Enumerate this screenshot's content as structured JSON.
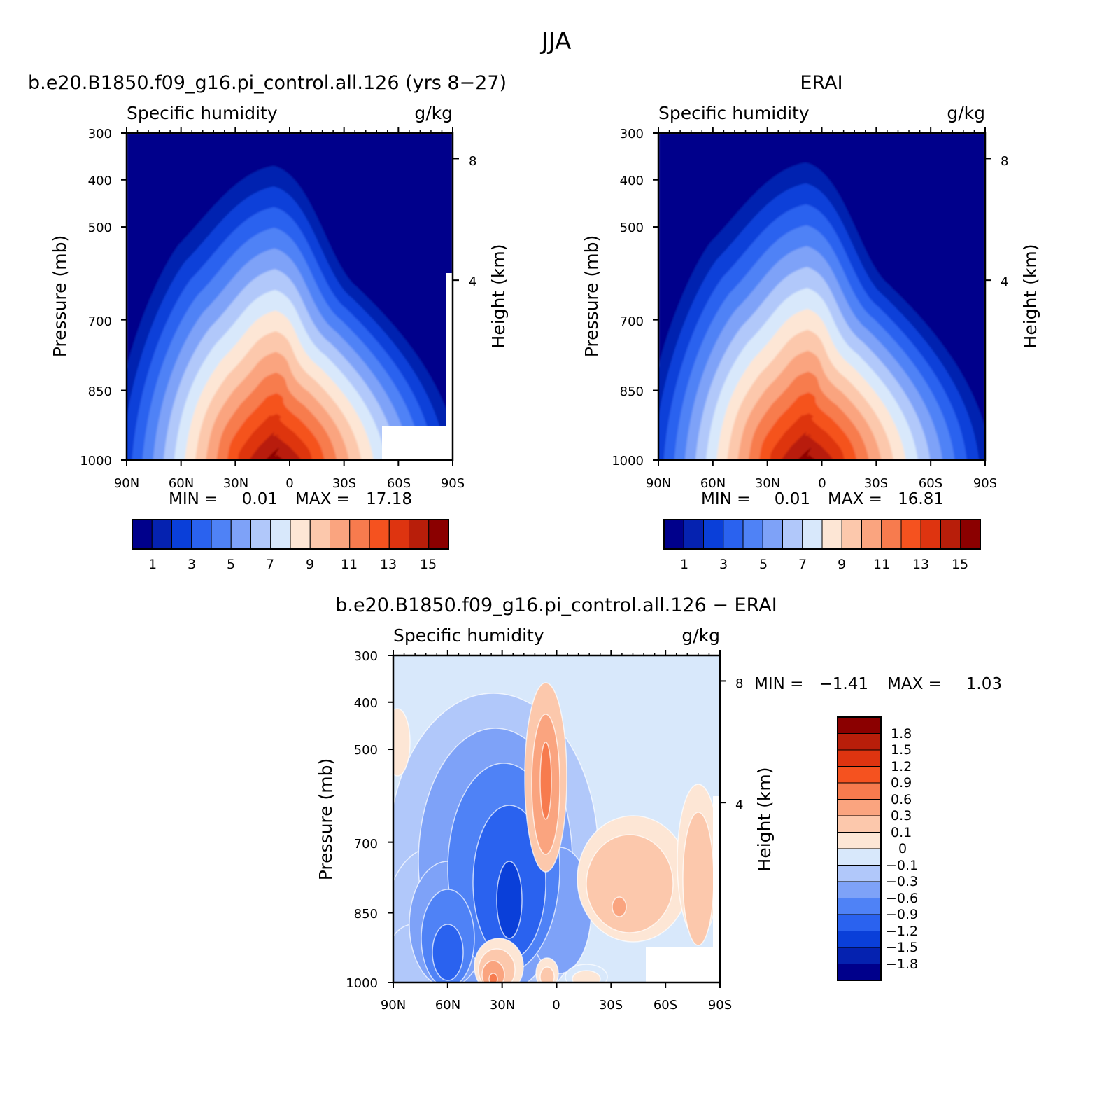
{
  "figure": {
    "title": "JJA"
  },
  "panels": [
    {
      "id": "model",
      "title": "b.e20.B1850.f09_g16.pi_control.all.126 (yrs 8-27)",
      "left_label": "Specific humidity",
      "right_label": "g/kg",
      "ylabel": "Pressure (mb)",
      "y2label": "Height (km)",
      "xticks": [
        "90N",
        "60N",
        "30N",
        "0",
        "30S",
        "60S",
        "90S"
      ],
      "yticks": [
        "300",
        "400",
        "500",
        "700",
        "850",
        "1000"
      ],
      "y2ticks": [
        "8",
        "4"
      ],
      "stats_min_label": "MIN =",
      "stats_min": "0.01",
      "stats_max_label": "MAX =",
      "stats_max": "17.18"
    },
    {
      "id": "obs",
      "title": "ERAI",
      "left_label": "Specific humidity",
      "right_label": "g/kg",
      "ylabel": "Pressure (mb)",
      "y2label": "Height (km)",
      "xticks": [
        "90N",
        "60N",
        "30N",
        "0",
        "30S",
        "60S",
        "90S"
      ],
      "yticks": [
        "300",
        "400",
        "500",
        "700",
        "850",
        "1000"
      ],
      "y2ticks": [
        "8",
        "4"
      ],
      "stats_min_label": "MIN =",
      "stats_min": "0.01",
      "stats_max_label": "MAX =",
      "stats_max": "16.81"
    },
    {
      "id": "diff",
      "title": "b.e20.B1850.f09_g16.pi_control.all.126 - ERAI",
      "left_label": "Specific humidity",
      "right_label": "g/kg",
      "ylabel": "Pressure (mb)",
      "y2label": "Height (km)",
      "xticks": [
        "90N",
        "60N",
        "30N",
        "0",
        "30S",
        "60S",
        "90S"
      ],
      "yticks": [
        "300",
        "400",
        "500",
        "700",
        "850",
        "1000"
      ],
      "y2ticks": [
        "8",
        "4"
      ],
      "stats_min_label": "MIN =",
      "stats_min": "-1.41",
      "stats_max_label": "MAX =",
      "stats_max": "1.03"
    }
  ],
  "colorbars": {
    "abs": {
      "labels": [
        "1",
        "3",
        "5",
        "7",
        "9",
        "11",
        "13",
        "15"
      ],
      "levels": [
        1,
        2,
        3,
        4,
        5,
        6,
        7,
        8,
        9,
        10,
        11,
        12,
        13,
        14,
        15
      ],
      "colors": [
        "#00008b",
        "#0522b0",
        "#0a3fd9",
        "#2a62ef",
        "#4f82f6",
        "#7ea2f8",
        "#b1c8fa",
        "#d8e8fb",
        "#fde6d5",
        "#fcc8ac",
        "#faa47f",
        "#f77b4e",
        "#f5521f",
        "#de3410",
        "#b81e0a",
        "#8b0000"
      ]
    },
    "diff": {
      "labels": [
        "1.8",
        "1.5",
        "1.2",
        "0.9",
        "0.6",
        "0.3",
        "0.1",
        "0",
        "-0.1",
        "-0.3",
        "-0.6",
        "-0.9",
        "-1.2",
        "-1.5",
        "-1.8"
      ],
      "colors_top_down": [
        "#8b0000",
        "#b81e0a",
        "#de3410",
        "#f5521f",
        "#f77b4e",
        "#faa47f",
        "#fcc8ac",
        "#fde6d5",
        "#d8e8fb",
        "#b1c8fa",
        "#7ea2f8",
        "#4f82f6",
        "#2a62ef",
        "#0a3fd9",
        "#0522b0",
        "#00008b"
      ]
    }
  },
  "chart_data": [
    {
      "type": "heatmap",
      "title": "b.e20.B1850.f09_g16.pi_control.all.126 (yrs 8-27)",
      "variable": "Specific humidity",
      "units": "g/kg",
      "xlabel": "",
      "ylabel": "Pressure (mb)",
      "y2label": "Height (km)",
      "x": [
        90,
        75,
        60,
        45,
        30,
        15,
        0,
        -15,
        -30,
        -45,
        -60,
        -75,
        -90
      ],
      "x_tick_labels": [
        "90N",
        "60N",
        "30N",
        "0",
        "30S",
        "60S",
        "90S"
      ],
      "y": [
        1000,
        850,
        700,
        500,
        400,
        300
      ],
      "ylim": [
        1000,
        300
      ],
      "y_scale": "log",
      "contour_levels": [
        1,
        2,
        3,
        4,
        5,
        6,
        7,
        8,
        9,
        10,
        11,
        12,
        13,
        14,
        15
      ],
      "z": [
        [
          1.5,
          3.5,
          6.0,
          8.5,
          12.5,
          16.5,
          17.0,
          11.5,
          7.0,
          3.0,
          null,
          null,
          null
        ],
        [
          1.2,
          2.8,
          4.5,
          6.0,
          8.5,
          11.0,
          10.5,
          7.5,
          5.5,
          3.0,
          1.2,
          0.5,
          null
        ],
        [
          0.8,
          1.6,
          2.6,
          3.6,
          5.0,
          6.5,
          6.8,
          5.0,
          3.4,
          2.0,
          1.0,
          0.4,
          0.2
        ],
        [
          0.3,
          0.5,
          0.8,
          1.2,
          2.0,
          2.8,
          3.0,
          2.2,
          1.3,
          0.6,
          0.3,
          0.15,
          0.1
        ],
        [
          0.1,
          0.2,
          0.3,
          0.5,
          0.9,
          1.2,
          1.3,
          0.9,
          0.5,
          0.25,
          0.1,
          0.05,
          0.05
        ],
        [
          0.03,
          0.05,
          0.08,
          0.15,
          0.25,
          0.35,
          0.4,
          0.3,
          0.15,
          0.08,
          0.04,
          0.02,
          0.01
        ]
      ],
      "min": 0.01,
      "max": 17.18
    },
    {
      "type": "heatmap",
      "title": "ERAI",
      "variable": "Specific humidity",
      "units": "g/kg",
      "xlabel": "",
      "ylabel": "Pressure (mb)",
      "y2label": "Height (km)",
      "x": [
        90,
        75,
        60,
        45,
        30,
        15,
        0,
        -15,
        -30,
        -45,
        -60,
        -75,
        -90
      ],
      "x_tick_labels": [
        "90N",
        "60N",
        "30N",
        "0",
        "30S",
        "60S",
        "90S"
      ],
      "y": [
        1000,
        850,
        700,
        500,
        400,
        300
      ],
      "ylim": [
        1000,
        300
      ],
      "y_scale": "log",
      "contour_levels": [
        1,
        2,
        3,
        4,
        5,
        6,
        7,
        8,
        9,
        10,
        11,
        12,
        13,
        14,
        15
      ],
      "z": [
        [
          2.0,
          4.0,
          6.0,
          8.5,
          12.0,
          16.0,
          16.5,
          12.0,
          7.5,
          4.0,
          2.0,
          0.8,
          0.5
        ],
        [
          1.5,
          3.0,
          4.5,
          6.0,
          8.5,
          11.0,
          11.0,
          8.0,
          5.5,
          3.0,
          1.5,
          0.6,
          0.4
        ],
        [
          0.8,
          1.7,
          2.7,
          3.8,
          5.2,
          6.8,
          7.0,
          5.2,
          3.5,
          2.0,
          1.0,
          0.4,
          0.2
        ],
        [
          0.3,
          0.5,
          0.8,
          1.3,
          2.1,
          3.0,
          3.2,
          2.3,
          1.4,
          0.7,
          0.3,
          0.15,
          0.1
        ],
        [
          0.1,
          0.2,
          0.3,
          0.5,
          0.9,
          1.3,
          1.4,
          1.0,
          0.5,
          0.25,
          0.1,
          0.05,
          0.05
        ],
        [
          0.03,
          0.05,
          0.08,
          0.15,
          0.25,
          0.35,
          0.45,
          0.3,
          0.15,
          0.08,
          0.04,
          0.02,
          0.01
        ]
      ],
      "min": 0.01,
      "max": 16.81
    },
    {
      "type": "heatmap",
      "title": "b.e20.B1850.f09_g16.pi_control.all.126 - ERAI",
      "variable": "Specific humidity",
      "units": "g/kg",
      "xlabel": "",
      "ylabel": "Pressure (mb)",
      "y2label": "Height (km)",
      "x": [
        90,
        75,
        60,
        45,
        30,
        15,
        0,
        -15,
        -30,
        -45,
        -60,
        -75,
        -90
      ],
      "x_tick_labels": [
        "90N",
        "60N",
        "30N",
        "0",
        "30S",
        "60S",
        "90S"
      ],
      "y": [
        1000,
        850,
        700,
        500,
        400,
        300
      ],
      "ylim": [
        1000,
        300
      ],
      "y_scale": "log",
      "contour_levels": [
        -1.8,
        -1.5,
        -1.2,
        -0.9,
        -0.6,
        -0.3,
        -0.1,
        0,
        0.1,
        0.3,
        0.6,
        0.9,
        1.2,
        1.5,
        1.8
      ],
      "z": [
        [
          -0.3,
          -0.6,
          -1.2,
          -0.6,
          0.6,
          -0.3,
          0.3,
          -0.3,
          -0.1,
          -0.3,
          null,
          null,
          null
        ],
        [
          -0.1,
          -0.3,
          -0.9,
          -0.6,
          -1.2,
          -0.9,
          -0.3,
          -0.1,
          0.3,
          0.3,
          -0.1,
          0.3,
          null
        ],
        [
          -0.05,
          -0.3,
          -0.6,
          -0.9,
          -1.2,
          -0.6,
          0.1,
          -0.3,
          0.1,
          0.1,
          -0.05,
          0.1,
          0.1
        ],
        [
          0.1,
          -0.05,
          -0.1,
          -0.3,
          -0.6,
          -0.3,
          0.3,
          -0.3,
          -0.05,
          -0.05,
          -0.05,
          -0.05,
          -0.05
        ],
        [
          -0.05,
          -0.05,
          -0.05,
          -0.1,
          -0.3,
          -0.3,
          0.1,
          -0.1,
          -0.05,
          -0.05,
          -0.05,
          -0.05,
          -0.05
        ],
        [
          -0.05,
          -0.05,
          -0.05,
          -0.05,
          -0.05,
          -0.1,
          -0.1,
          -0.05,
          -0.05,
          -0.05,
          -0.05,
          -0.05,
          -0.05
        ]
      ],
      "min": -1.41,
      "max": 1.03
    }
  ]
}
